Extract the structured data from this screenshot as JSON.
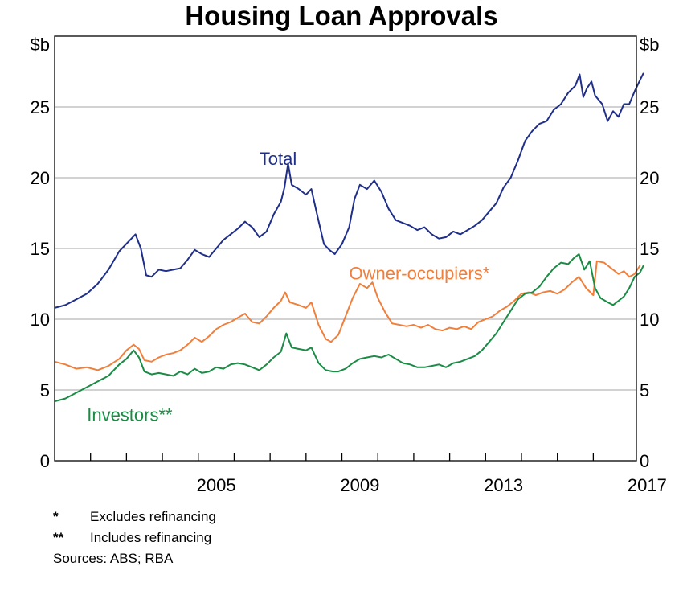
{
  "chart_data": {
    "type": "line",
    "title": "Housing Loan Approvals",
    "unit_left": "$b",
    "unit_right": "$b",
    "ylim": [
      0,
      30
    ],
    "yticks": [
      0,
      5,
      10,
      15,
      20,
      25
    ],
    "xlim": [
      2001.0,
      2017.2
    ],
    "xticks_labeled": [
      2005,
      2009,
      2013,
      2017
    ],
    "xticks_minor": [
      2002,
      2003,
      2004,
      2005,
      2006,
      2007,
      2008,
      2009,
      2010,
      2011,
      2012,
      2013,
      2014,
      2015,
      2016
    ],
    "grid": true,
    "series": [
      {
        "name": "Total",
        "color": "#1f2f8a",
        "label": "Total",
        "points": [
          [
            2001.0,
            10.8
          ],
          [
            2001.3,
            11.0
          ],
          [
            2001.6,
            11.4
          ],
          [
            2001.9,
            11.8
          ],
          [
            2002.2,
            12.5
          ],
          [
            2002.5,
            13.5
          ],
          [
            2002.8,
            14.8
          ],
          [
            2003.1,
            15.6
          ],
          [
            2003.25,
            16.0
          ],
          [
            2003.4,
            15.0
          ],
          [
            2003.55,
            13.1
          ],
          [
            2003.7,
            13.0
          ],
          [
            2003.9,
            13.5
          ],
          [
            2004.1,
            13.4
          ],
          [
            2004.3,
            13.5
          ],
          [
            2004.5,
            13.6
          ],
          [
            2004.7,
            14.2
          ],
          [
            2004.9,
            14.9
          ],
          [
            2005.1,
            14.6
          ],
          [
            2005.3,
            14.4
          ],
          [
            2005.5,
            15.0
          ],
          [
            2005.7,
            15.6
          ],
          [
            2005.9,
            16.0
          ],
          [
            2006.1,
            16.4
          ],
          [
            2006.3,
            16.9
          ],
          [
            2006.5,
            16.5
          ],
          [
            2006.7,
            15.8
          ],
          [
            2006.9,
            16.2
          ],
          [
            2007.1,
            17.4
          ],
          [
            2007.3,
            18.3
          ],
          [
            2007.4,
            19.3
          ],
          [
            2007.5,
            21.0
          ],
          [
            2007.6,
            19.5
          ],
          [
            2007.8,
            19.2
          ],
          [
            2008.0,
            18.8
          ],
          [
            2008.15,
            19.2
          ],
          [
            2008.3,
            17.5
          ],
          [
            2008.5,
            15.3
          ],
          [
            2008.65,
            14.9
          ],
          [
            2008.8,
            14.6
          ],
          [
            2009.0,
            15.3
          ],
          [
            2009.2,
            16.5
          ],
          [
            2009.35,
            18.5
          ],
          [
            2009.5,
            19.5
          ],
          [
            2009.7,
            19.2
          ],
          [
            2009.9,
            19.8
          ],
          [
            2010.1,
            19.0
          ],
          [
            2010.3,
            17.8
          ],
          [
            2010.5,
            17.0
          ],
          [
            2010.7,
            16.8
          ],
          [
            2010.9,
            16.6
          ],
          [
            2011.1,
            16.3
          ],
          [
            2011.3,
            16.5
          ],
          [
            2011.5,
            16.0
          ],
          [
            2011.7,
            15.7
          ],
          [
            2011.9,
            15.8
          ],
          [
            2012.1,
            16.2
          ],
          [
            2012.3,
            16.0
          ],
          [
            2012.5,
            16.3
          ],
          [
            2012.7,
            16.6
          ],
          [
            2012.9,
            17.0
          ],
          [
            2013.1,
            17.6
          ],
          [
            2013.3,
            18.2
          ],
          [
            2013.5,
            19.3
          ],
          [
            2013.7,
            20.0
          ],
          [
            2013.9,
            21.2
          ],
          [
            2014.1,
            22.6
          ],
          [
            2014.3,
            23.3
          ],
          [
            2014.5,
            23.8
          ],
          [
            2014.7,
            24.0
          ],
          [
            2014.9,
            24.8
          ],
          [
            2015.1,
            25.2
          ],
          [
            2015.3,
            26.0
          ],
          [
            2015.5,
            26.5
          ],
          [
            2015.62,
            27.3
          ],
          [
            2015.72,
            25.7
          ],
          [
            2015.82,
            26.3
          ],
          [
            2015.95,
            26.8
          ],
          [
            2016.05,
            25.8
          ],
          [
            2016.25,
            25.2
          ],
          [
            2016.4,
            24.0
          ],
          [
            2016.55,
            24.7
          ],
          [
            2016.7,
            24.3
          ],
          [
            2016.85,
            25.2
          ],
          [
            2017.0,
            25.2
          ],
          [
            2017.15,
            26.1
          ],
          [
            2017.3,
            26.9
          ],
          [
            2017.4,
            27.4
          ]
        ]
      },
      {
        "name": "Owner-occupiers*",
        "color": "#f07f3c",
        "label": "Owner-occupiers*",
        "points": [
          [
            2001.0,
            7.0
          ],
          [
            2001.3,
            6.8
          ],
          [
            2001.6,
            6.5
          ],
          [
            2001.9,
            6.6
          ],
          [
            2002.2,
            6.4
          ],
          [
            2002.5,
            6.7
          ],
          [
            2002.8,
            7.2
          ],
          [
            2003.0,
            7.8
          ],
          [
            2003.2,
            8.2
          ],
          [
            2003.35,
            7.9
          ],
          [
            2003.5,
            7.1
          ],
          [
            2003.7,
            7.0
          ],
          [
            2003.9,
            7.3
          ],
          [
            2004.1,
            7.5
          ],
          [
            2004.3,
            7.6
          ],
          [
            2004.5,
            7.8
          ],
          [
            2004.7,
            8.2
          ],
          [
            2004.9,
            8.7
          ],
          [
            2005.1,
            8.4
          ],
          [
            2005.3,
            8.8
          ],
          [
            2005.5,
            9.3
          ],
          [
            2005.7,
            9.6
          ],
          [
            2005.9,
            9.8
          ],
          [
            2006.1,
            10.1
          ],
          [
            2006.3,
            10.4
          ],
          [
            2006.5,
            9.8
          ],
          [
            2006.7,
            9.7
          ],
          [
            2006.9,
            10.2
          ],
          [
            2007.1,
            10.8
          ],
          [
            2007.3,
            11.3
          ],
          [
            2007.42,
            11.9
          ],
          [
            2007.55,
            11.2
          ],
          [
            2007.8,
            11.0
          ],
          [
            2008.0,
            10.8
          ],
          [
            2008.15,
            11.2
          ],
          [
            2008.35,
            9.6
          ],
          [
            2008.55,
            8.6
          ],
          [
            2008.7,
            8.4
          ],
          [
            2008.9,
            8.9
          ],
          [
            2009.1,
            10.2
          ],
          [
            2009.3,
            11.5
          ],
          [
            2009.5,
            12.5
          ],
          [
            2009.7,
            12.2
          ],
          [
            2009.85,
            12.6
          ],
          [
            2010.0,
            11.5
          ],
          [
            2010.2,
            10.5
          ],
          [
            2010.4,
            9.7
          ],
          [
            2010.6,
            9.6
          ],
          [
            2010.8,
            9.5
          ],
          [
            2011.0,
            9.6
          ],
          [
            2011.2,
            9.4
          ],
          [
            2011.4,
            9.6
          ],
          [
            2011.6,
            9.3
          ],
          [
            2011.8,
            9.2
          ],
          [
            2012.0,
            9.4
          ],
          [
            2012.2,
            9.3
          ],
          [
            2012.4,
            9.5
          ],
          [
            2012.6,
            9.3
          ],
          [
            2012.8,
            9.8
          ],
          [
            2013.0,
            10.0
          ],
          [
            2013.2,
            10.2
          ],
          [
            2013.4,
            10.6
          ],
          [
            2013.6,
            10.9
          ],
          [
            2013.8,
            11.3
          ],
          [
            2014.0,
            11.8
          ],
          [
            2014.2,
            11.9
          ],
          [
            2014.4,
            11.7
          ],
          [
            2014.6,
            11.9
          ],
          [
            2014.8,
            12.0
          ],
          [
            2015.0,
            11.8
          ],
          [
            2015.2,
            12.1
          ],
          [
            2015.4,
            12.6
          ],
          [
            2015.6,
            13.0
          ],
          [
            2015.8,
            12.2
          ],
          [
            2016.0,
            11.7
          ],
          [
            2016.1,
            14.1
          ],
          [
            2016.3,
            14.0
          ],
          [
            2016.5,
            13.6
          ],
          [
            2016.7,
            13.2
          ],
          [
            2016.85,
            13.4
          ],
          [
            2017.0,
            13.0
          ],
          [
            2017.15,
            13.2
          ],
          [
            2017.3,
            13.8
          ]
        ]
      },
      {
        "name": "Investors**",
        "color": "#1a8c45",
        "label": "Investors**",
        "points": [
          [
            2001.0,
            4.2
          ],
          [
            2001.3,
            4.4
          ],
          [
            2001.6,
            4.8
          ],
          [
            2001.9,
            5.2
          ],
          [
            2002.2,
            5.6
          ],
          [
            2002.5,
            6.0
          ],
          [
            2002.8,
            6.8
          ],
          [
            2003.0,
            7.2
          ],
          [
            2003.2,
            7.8
          ],
          [
            2003.35,
            7.3
          ],
          [
            2003.5,
            6.3
          ],
          [
            2003.7,
            6.1
          ],
          [
            2003.9,
            6.2
          ],
          [
            2004.1,
            6.1
          ],
          [
            2004.3,
            6.0
          ],
          [
            2004.5,
            6.3
          ],
          [
            2004.7,
            6.1
          ],
          [
            2004.9,
            6.5
          ],
          [
            2005.1,
            6.2
          ],
          [
            2005.3,
            6.3
          ],
          [
            2005.5,
            6.6
          ],
          [
            2005.7,
            6.5
          ],
          [
            2005.9,
            6.8
          ],
          [
            2006.1,
            6.9
          ],
          [
            2006.3,
            6.8
          ],
          [
            2006.5,
            6.6
          ],
          [
            2006.7,
            6.4
          ],
          [
            2006.9,
            6.8
          ],
          [
            2007.1,
            7.3
          ],
          [
            2007.3,
            7.7
          ],
          [
            2007.45,
            9.0
          ],
          [
            2007.6,
            8.0
          ],
          [
            2007.8,
            7.9
          ],
          [
            2008.0,
            7.8
          ],
          [
            2008.15,
            8.0
          ],
          [
            2008.35,
            6.9
          ],
          [
            2008.55,
            6.4
          ],
          [
            2008.75,
            6.3
          ],
          [
            2008.9,
            6.3
          ],
          [
            2009.1,
            6.5
          ],
          [
            2009.3,
            6.9
          ],
          [
            2009.5,
            7.2
          ],
          [
            2009.7,
            7.3
          ],
          [
            2009.9,
            7.4
          ],
          [
            2010.1,
            7.3
          ],
          [
            2010.3,
            7.5
          ],
          [
            2010.5,
            7.2
          ],
          [
            2010.7,
            6.9
          ],
          [
            2010.9,
            6.8
          ],
          [
            2011.1,
            6.6
          ],
          [
            2011.3,
            6.6
          ],
          [
            2011.5,
            6.7
          ],
          [
            2011.7,
            6.8
          ],
          [
            2011.9,
            6.6
          ],
          [
            2012.1,
            6.9
          ],
          [
            2012.3,
            7.0
          ],
          [
            2012.5,
            7.2
          ],
          [
            2012.7,
            7.4
          ],
          [
            2012.9,
            7.8
          ],
          [
            2013.1,
            8.4
          ],
          [
            2013.3,
            9.0
          ],
          [
            2013.5,
            9.8
          ],
          [
            2013.7,
            10.6
          ],
          [
            2013.9,
            11.4
          ],
          [
            2014.1,
            11.8
          ],
          [
            2014.3,
            11.9
          ],
          [
            2014.5,
            12.3
          ],
          [
            2014.7,
            13.0
          ],
          [
            2014.9,
            13.6
          ],
          [
            2015.1,
            14.0
          ],
          [
            2015.3,
            13.9
          ],
          [
            2015.45,
            14.3
          ],
          [
            2015.6,
            14.6
          ],
          [
            2015.75,
            13.5
          ],
          [
            2015.9,
            14.1
          ],
          [
            2016.05,
            12.2
          ],
          [
            2016.2,
            11.5
          ],
          [
            2016.4,
            11.2
          ],
          [
            2016.55,
            11.0
          ],
          [
            2016.7,
            11.3
          ],
          [
            2016.85,
            11.6
          ],
          [
            2017.0,
            12.2
          ],
          [
            2017.15,
            13.0
          ],
          [
            2017.3,
            13.3
          ],
          [
            2017.4,
            13.8
          ]
        ]
      }
    ],
    "series_label_positions": [
      "Total",
      "Owner-occupiers*",
      "Investors**"
    ]
  },
  "notes": [
    {
      "mark": "*",
      "text": "Excludes refinancing"
    },
    {
      "mark": "**",
      "text": "Includes refinancing"
    }
  ],
  "sources": "Sources: ABS; RBA"
}
